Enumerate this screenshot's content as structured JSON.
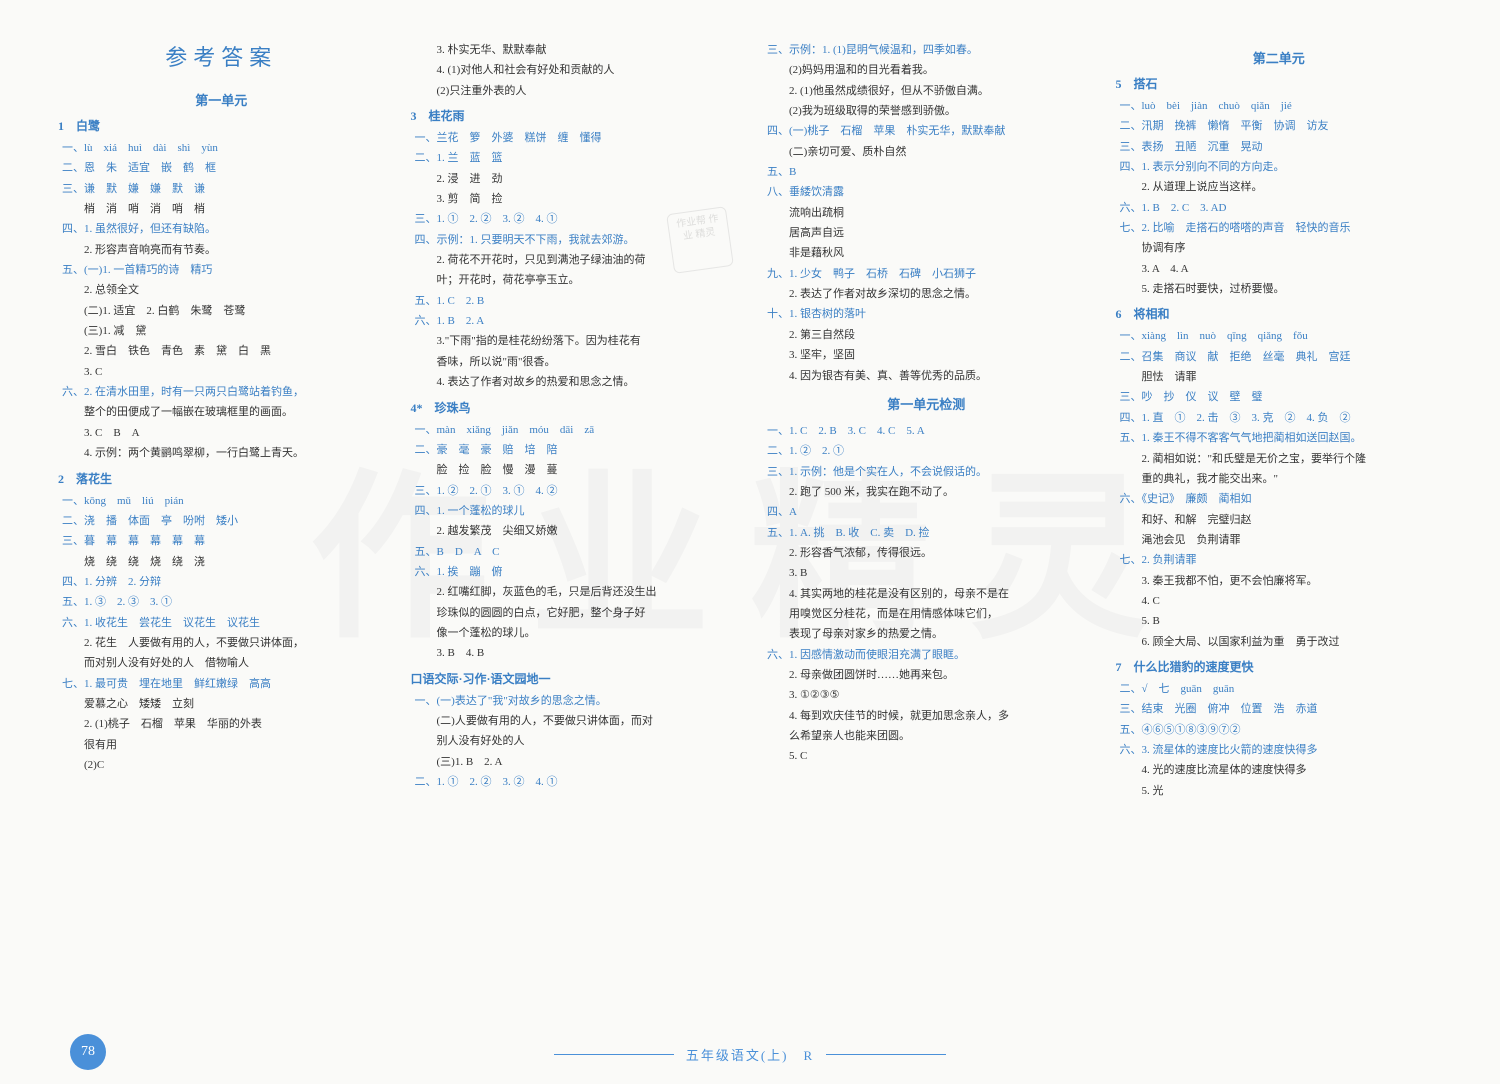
{
  "main_title": "参考答案",
  "watermark_text": "作业精灵",
  "stamp_text": "作业帮\n作业\n精灵",
  "page_number": "78",
  "footer_text": "五年级语文(上)　R",
  "unit1": {
    "title": "第一单元",
    "ch1": {
      "title": "1　白鹭",
      "l1": "一、lù　xiá　huì　dài　shì　yùn",
      "l2": "二、恩　朱　适宜　嵌　鹤　框",
      "l3": "三、谦　默　嫌　嫌　默　谦",
      "l3b": "梢　消　哨　消　哨　梢",
      "l4_1": "四、1. 虽然很好，但还有缺陷。",
      "l4_2": "2. 形容声音响亮而有节奏。",
      "l5_1": "五、(一)1. 一首精巧的诗　精巧",
      "l5_1b": "2. 总领全文",
      "l5_2": "(二)1. 适宜　2. 白鹤　朱鹭　苍鹭",
      "l5_3": "(三)1. 减　黛",
      "l5_3b": "2. 雪白　铁色　青色　素　黛　白　黑",
      "l5_3c": "3. C",
      "l6_2": "六、2. 在清水田里，时有一只两只白鹭站着钓鱼，",
      "l6_2b": "整个的田便成了一幅嵌在玻璃框里的画面。",
      "l6_3": "3. C　B　A",
      "l6_4": "4. 示例：两个黄鹂鸣翠柳，一行白鹭上青天。"
    },
    "ch2": {
      "title": "2　落花生",
      "l1": "一、kōng　mǔ　liú　pián",
      "l2": "二、浇　播　体面　亭　吩咐　矮小",
      "l3": "三、暮　幕　幕　幕　幕　幕",
      "l3b": "烧　绕　绕　烧　绕　浇",
      "l4": "四、1. 分辨　2. 分辩",
      "l5": "五、1. ③　2. ③　3. ①",
      "l6_1": "六、1. 收花生　尝花生　议花生　议花生",
      "l6_2": "2. 花生　人要做有用的人，不要做只讲体面，",
      "l6_2b": "而对别人没有好处的人　借物喻人",
      "l7_1": "七、1. 最可贵　埋在地里　鲜红嫩绿　高高",
      "l7_1b": "爱慕之心　矮矮　立刻",
      "l7_2": "2. (1)桃子　石榴　苹果　华丽的外表",
      "l7_2b": "很有用",
      "l7_2c": "(2)C"
    }
  },
  "col2": {
    "l3": "3. 朴实无华、默默奉献",
    "l4_1": "4. (1)对他人和社会有好处和贡献的人",
    "l4_2": "(2)只注重外表的人",
    "ch3": {
      "title": "3　桂花雨",
      "l1": "一、兰花　箩　外婆　糕饼　缠　懂得",
      "l2_1": "二、1. 兰　蓝　篮",
      "l2_2": "2. 浸　进　劲",
      "l2_3": "3. 剪　简　捡",
      "l3": "三、1. ①　2. ②　3. ②　4. ①",
      "l4_1": "四、示例：1. 只要明天不下雨，我就去郊游。",
      "l4_2": "2. 荷花不开花时，只见到满池子绿油油的荷",
      "l4_2b": "叶；开花时，荷花亭亭玉立。",
      "l5": "五、1. C　2. B",
      "l6_1": "六、1. B　2. A",
      "l6_3": "3.\"下雨\"指的是桂花纷纷落下。因为桂花有",
      "l6_3b": "香味，所以说\"雨\"很香。",
      "l6_4": "4. 表达了作者对故乡的热爱和思念之情。"
    },
    "ch4": {
      "title": "4*　珍珠鸟",
      "l1": "一、màn　xiǎng　jiǎn　móu　dāi　zā",
      "l2": "二、豪　毫　豪　赔　培　陪",
      "l2b": "脸　捡　脸　慢　漫　蔓",
      "l3": "三、1. ②　2. ①　3. ①　4. ②",
      "l4_1": "四、1. 一个蓬松的球儿",
      "l4_2": "2. 越发繁茂　尖细又娇嫩",
      "l5": "五、B　D　A　C",
      "l6_1": "六、1. 挨　蹦　俯",
      "l6_2": "2. 红嘴红脚，灰蓝色的毛，只是后背还没生出",
      "l6_2b": "珍珠似的圆圆的白点，它好肥，整个身子好",
      "l6_2c": "像一个蓬松的球儿。",
      "l6_3": "3. B　4. B"
    },
    "practice": {
      "title": "口语交际·习作·语文园地一",
      "l1": "一、(一)表达了\"我\"对故乡的思念之情。",
      "l1b": "(二)人要做有用的人，不要做只讲体面，而对",
      "l1c": "别人没有好处的人",
      "l1d": "(三)1. B　2. A",
      "l2": "二、1. ①　2. ②　3. ②　4. ①"
    }
  },
  "col3": {
    "l3_1": "三、示例：1. (1)昆明气候温和，四季如春。",
    "l3_2": "(2)妈妈用温和的目光看着我。",
    "l3_3": "2. (1)他虽然成绩很好，但从不骄傲自满。",
    "l3_4": "(2)我为班级取得的荣誉感到骄傲。",
    "l4_1": "四、(一)桃子　石榴　苹果　朴实无华，默默奉献",
    "l4_2": "(二)亲切可爱、质朴自然",
    "l5": "五、B",
    "l6": "八、垂緌饮清露",
    "l6b": "流响出疏桐",
    "l6c": "居高声自远",
    "l6d": "非是藉秋风",
    "l9_1": "九、1. 少女　鸭子　石桥　石碑　小石狮子",
    "l9_2": "2. 表达了作者对故乡深切的思念之情。",
    "l10_1": "十、1. 银杏树的落叶",
    "l10_2": "2. 第三自然段",
    "l10_3": "3. 坚牢，坚固",
    "l10_4": "4. 因为银杏有美、真、善等优秀的品质。",
    "test1": {
      "title": "第一单元检测",
      "l1": "一、1. C　2. B　3. C　4. C　5. A",
      "l2": "二、1. ②　2. ①",
      "l3_1": "三、1. 示例：他是个实在人，不会说假话的。",
      "l3_2": "2. 跑了 500 米，我实在跑不动了。",
      "l4": "四、A",
      "l5_1": "五、1. A. 挑　B. 收　C. 卖　D. 捡",
      "l5_2": "2. 形容香气浓郁，传得很远。",
      "l5_3": "3. B",
      "l5_4": "4. 其实两地的桂花是没有区别的，母亲不是在",
      "l5_4b": "用嗅觉区分桂花，而是在用情感体味它们，",
      "l5_4c": "表现了母亲对家乡的热爱之情。",
      "l6_1": "六、1. 因感情激动而使眼泪充满了眼眶。",
      "l6_2": "2. 母亲做团圆饼时……她再来包。",
      "l6_3": "3. ①②③⑤",
      "l6_4": "4. 每到欢庆佳节的时候，就更加思念亲人，多",
      "l6_4b": "么希望亲人也能来团圆。",
      "l6_5": "5. C"
    }
  },
  "unit2": {
    "title": "第二单元",
    "ch5": {
      "title": "5　搭石",
      "l1": "一、luò　bèi　jiàn　chuò　qiǎn　jié",
      "l2": "二、汛期　挽裤　懒惰　平衡　协调　访友",
      "l3": "三、表扬　丑陋　沉重　晃动",
      "l4_1": "四、1. 表示分别向不同的方向走。",
      "l4_2": "2. 从道理上说应当这样。",
      "l6": "六、1. B　2. C　3. AD",
      "l7_2": "七、2. 比喻　走搭石的嗒嗒的声音　轻快的音乐",
      "l7_2b": "协调有序",
      "l7_3": "3. A　4. A",
      "l7_5": "5. 走搭石时要快，过桥要慢。"
    },
    "ch6": {
      "title": "6　将相和",
      "l1": "一、xiàng　lìn　nuò　qīng　qiǎng　fǒu",
      "l2": "二、召集　商议　献　拒绝　丝毫　典礼　宫廷",
      "l2b": "胆怯　请罪",
      "l3": "三、吵　抄　仪　议　壁　璧",
      "l4": "四、1. 直　①　2. 击　③　3. 克　②　4. 负　②",
      "l5_1": "五、1. 秦王不得不客客气气地把蔺相如送回赵国。",
      "l5_2": "2. 蔺相如说：\"和氏璧是无价之宝，要举行个隆",
      "l5_2b": "重的典礼，我才能交出来。\"",
      "l6": "六、《史记》　廉颇　蔺相如",
      "l6b": "和好、和解　完璧归赵",
      "l6c": "渑池会见　负荆请罪",
      "l7_2": "七、2. 负荆请罪",
      "l7_3": "3. 秦王我都不怕，更不会怕廉将军。",
      "l7_4": "4. C",
      "l7_5": "5. B",
      "l7_6": "6. 顾全大局、以国家利益为重　勇于改过"
    },
    "ch7": {
      "title": "7　什么比猎豹的速度更快",
      "l2": "二、√　七　guān　guān",
      "l3": "三、结束　光圈　俯冲　位置　浩　赤道",
      "l5": "五、④⑥⑤①⑧③⑨⑦②",
      "l6_3": "六、3. 流星体的速度比火箭的速度快得多",
      "l6_4": "4. 光的速度比流星体的速度快得多",
      "l6_5": "5. 光"
    }
  }
}
